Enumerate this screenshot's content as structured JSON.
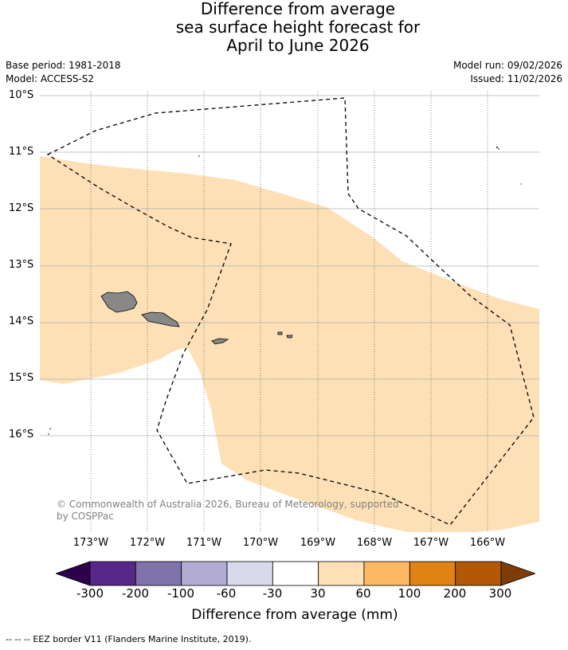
{
  "title": {
    "line1": "Difference from average",
    "line2": "sea surface height forecast for",
    "line3": "April to June 2026"
  },
  "meta": {
    "base_period": "Base period: 1981-2018",
    "model": "Model: ACCESS-S2",
    "model_run": "Model run: 09/02/2026",
    "issued": "Issued: 11/02/2026"
  },
  "map": {
    "lat_labels": [
      "10°S",
      "11°S",
      "12°S",
      "13°S",
      "14°S",
      "15°S",
      "16°S"
    ],
    "lon_labels": [
      "173°W",
      "172°W",
      "171°W",
      "170°W",
      "169°W",
      "168°W",
      "167°W",
      "166°W"
    ],
    "anomaly_fill_color": "#fde0b6",
    "land_color": "#888888",
    "copyright": "© Commonwealth of Australia 2026, Bureau of Meteorology, supported",
    "copyright2": "by COSPPac"
  },
  "colorbar": {
    "ticks": [
      "-300",
      "-200",
      "-100",
      "-60",
      "-30",
      "30",
      "60",
      "100",
      "200",
      "300"
    ],
    "colors": [
      "#2d004b",
      "#542788",
      "#8073ac",
      "#b2abd2",
      "#d8daeb",
      "#ffffff",
      "#fee0b6",
      "#fdb863",
      "#e08214",
      "#b35806",
      "#7f3b08"
    ],
    "label": "Difference from average (mm)"
  },
  "footer": {
    "legend_symbol": "--  --  --",
    "eez_text": "EEZ border V11 (Flanders Marine Institute, 2019)."
  }
}
